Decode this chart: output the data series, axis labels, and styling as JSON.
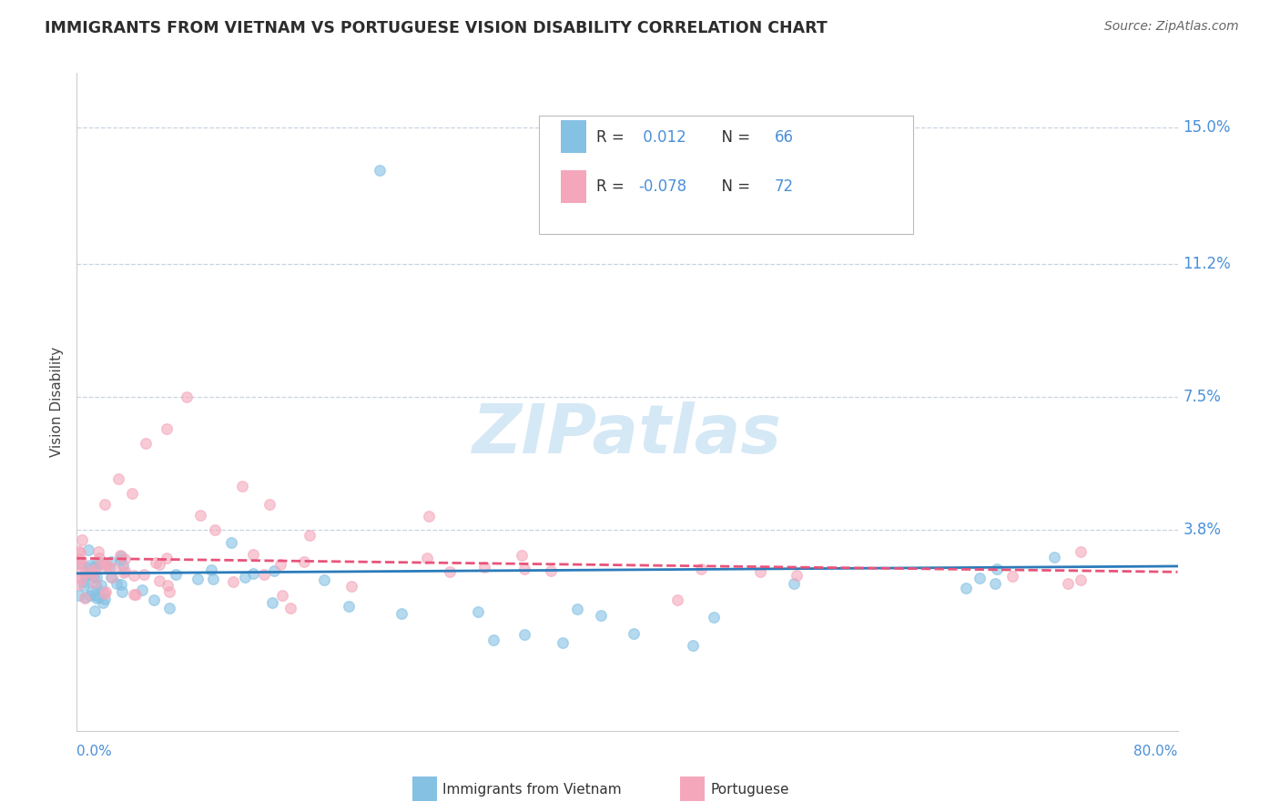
{
  "title": "IMMIGRANTS FROM VIETNAM VS PORTUGUESE VISION DISABILITY CORRELATION CHART",
  "source": "Source: ZipAtlas.com",
  "ylabel": "Vision Disability",
  "xmin": 0.0,
  "xmax": 0.8,
  "ymin": -0.018,
  "ymax": 0.165,
  "ytick_vals": [
    0.038,
    0.075,
    0.112,
    0.15
  ],
  "ytick_labels": [
    "3.8%",
    "7.5%",
    "11.2%",
    "15.0%"
  ],
  "color_blue": "#85c1e3",
  "color_pink": "#f4a7bb",
  "trendline_blue_color": "#2b7bba",
  "trendline_pink_color": "#e8547a",
  "watermark_color": "#d5e8f5",
  "background_color": "#ffffff",
  "grid_color": "#c8d4e0",
  "title_color": "#2d2d2d",
  "source_color": "#666666",
  "axis_label_color": "#4a90d9",
  "legend_blue_r": "0.012",
  "legend_blue_n": "66",
  "legend_pink_r": "-0.078",
  "legend_pink_n": "72"
}
